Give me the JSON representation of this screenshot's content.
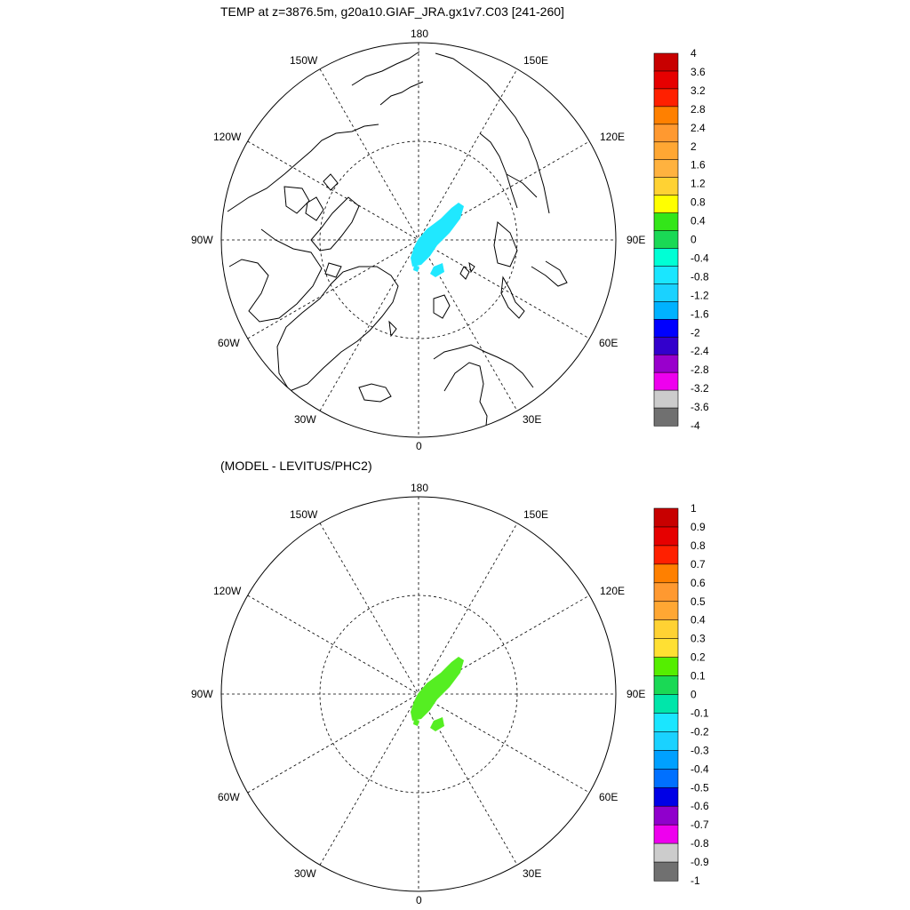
{
  "panels": [
    {
      "title": "TEMP at z=3876.5m, g20a10.GIAF_JRA.gx1v7.C03 [241-260]",
      "lon_labels": {
        "l180": "180",
        "l150E": "150E",
        "l120E": "120E",
        "l90E": "90E",
        "l60E": "60E",
        "l30E": "30E",
        "l0": "0",
        "l30W": "30W",
        "l60W": "60W",
        "l90W": "90W",
        "l120W": "120W",
        "l150W": "150W"
      },
      "colorbar": {
        "labels": [
          "4",
          "3.6",
          "3.2",
          "2.8",
          "2.4",
          "2",
          "1.6",
          "1.2",
          "0.8",
          "0.4",
          "0",
          "-0.4",
          "-0.8",
          "-1.2",
          "-1.6",
          "-2",
          "-2.4",
          "-2.8",
          "-3.2",
          "-3.6",
          "-4"
        ],
        "colors": [
          "#c80000",
          "#e60000",
          "#ff2000",
          "#ff8000",
          "#ff9930",
          "#ffa733",
          "#ffb23f",
          "#ffd233",
          "#ffff00",
          "#33e619",
          "#1ad955",
          "#00ffd5",
          "#1ae6ff",
          "#1ad2ff",
          "#00b2ff",
          "#0000ff",
          "#3300cc",
          "#9900cc",
          "#ee00ee",
          "#cccccc",
          "#707070"
        ]
      },
      "data_fill": {
        "value_range": "-0.8 to -0.4",
        "color": "#20e8ff"
      }
    },
    {
      "title": "(MODEL - LEVITUS/PHC2)",
      "lon_labels": {
        "l180": "180",
        "l150E": "150E",
        "l120E": "120E",
        "l90E": "90E",
        "l60E": "60E",
        "l30E": "30E",
        "l0": "0",
        "l30W": "30W",
        "l60W": "60W",
        "l90W": "90W",
        "l120W": "120W",
        "l150W": "150W"
      },
      "colorbar": {
        "labels": [
          "1",
          "0.9",
          "0.8",
          "0.7",
          "0.6",
          "0.5",
          "0.4",
          "0.3",
          "0.2",
          "0.1",
          "0",
          "-0.1",
          "-0.2",
          "-0.3",
          "-0.4",
          "-0.5",
          "-0.6",
          "-0.7",
          "-0.8",
          "-0.9",
          "-1"
        ],
        "colors": [
          "#c80000",
          "#e60000",
          "#ff2000",
          "#ff8000",
          "#ff9930",
          "#ffa733",
          "#ffd233",
          "#ffe033",
          "#55ee00",
          "#1ad955",
          "#00e6aa",
          "#1ae6ff",
          "#1ad2ff",
          "#00a0ff",
          "#0070ff",
          "#0000e6",
          "#9000cc",
          "#ee00ee",
          "#cccccc",
          "#707070"
        ]
      },
      "data_fill": {
        "value_range": "0.1 to 0.2",
        "color": "#55ee22"
      }
    }
  ]
}
